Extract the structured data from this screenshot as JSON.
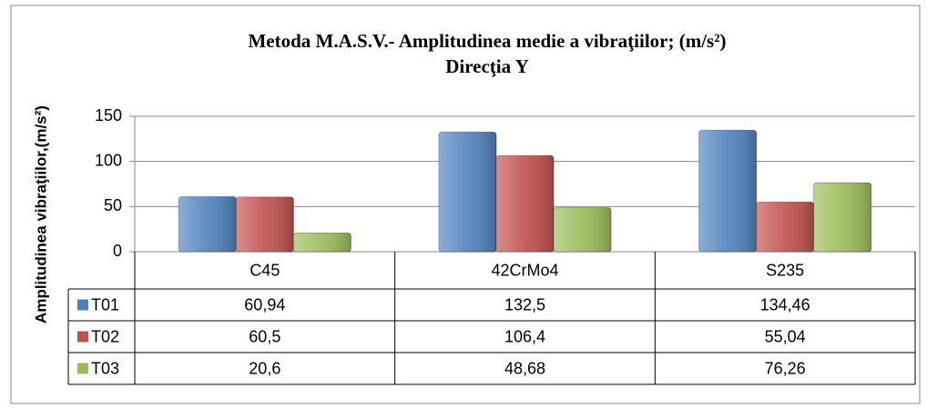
{
  "chart_data": {
    "type": "bar",
    "title": "Metoda M.A.S.V.- Amplitudinea medie a vibraţiilor; (m/s²)",
    "subtitle": "Direcţia Y",
    "y_label": "Amplitudinea vibraţiilor,(m/s²)",
    "categories": [
      "C45",
      "42CrMo4",
      "S235"
    ],
    "series": [
      {
        "name": "T01",
        "color": "#4f81bd",
        "values": [
          60.94,
          132.5,
          134.46
        ],
        "value_labels": [
          "60,94",
          "132,5",
          "134,46"
        ]
      },
      {
        "name": "T02",
        "color": "#c0504d",
        "values": [
          60.5,
          106.4,
          55.04
        ],
        "value_labels": [
          "60,5",
          "106,4",
          "55,04"
        ]
      },
      {
        "name": "T03",
        "color": "#9bbb59",
        "values": [
          20.6,
          48.68,
          76.26
        ],
        "value_labels": [
          "20,6",
          "48,68",
          "76,26"
        ]
      }
    ],
    "ylim": [
      0,
      150
    ],
    "yticks": [
      0,
      50,
      100,
      150
    ],
    "grid": true,
    "data_table": true
  }
}
